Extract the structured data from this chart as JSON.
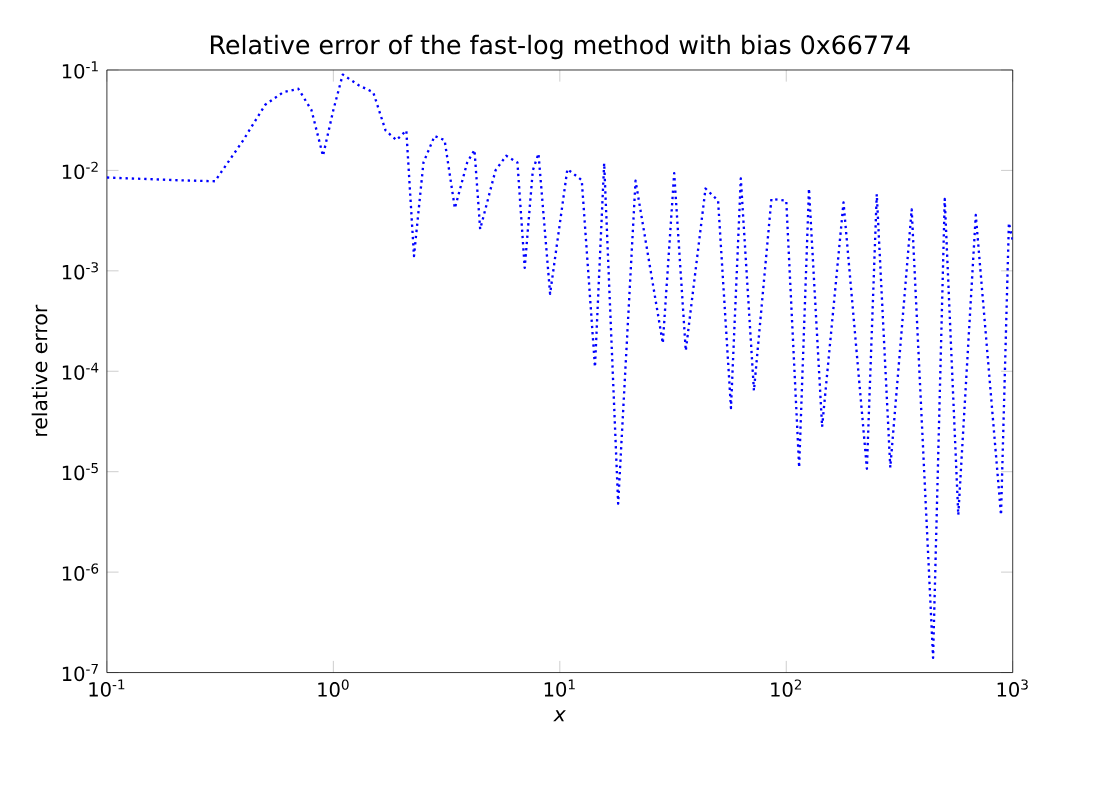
{
  "chart_data": {
    "type": "line",
    "title": "Relative error of the fast-log method with bias 0x66774",
    "xlabel": "*x*",
    "ylabel": "relative error",
    "log": "xy",
    "grid": false,
    "marker": "none",
    "line_style": "dotted",
    "xlim": [
      0.1,
      1000
    ],
    "ylim": [
      1e-07,
      0.1
    ],
    "xticks": [
      {
        "value": 0.1,
        "label": "10$^{-1}$"
      },
      {
        "value": 1,
        "label": "10$^{0}$"
      },
      {
        "value": 10,
        "label": "10$^{1}$"
      },
      {
        "value": 100,
        "label": "10$^{2}$"
      },
      {
        "value": 1000,
        "label": "10$^{3}$"
      }
    ],
    "yticks": [
      {
        "value": 1e-07,
        "label": "10$^{-7}$"
      },
      {
        "value": 1e-06,
        "label": "10$^{-6}$"
      },
      {
        "value": 1e-05,
        "label": "10$^{-5}$"
      },
      {
        "value": 0.0001,
        "label": "10$^{-4}$"
      },
      {
        "value": 0.001,
        "label": "10$^{-3}$"
      },
      {
        "value": 0.01,
        "label": "10$^{-2}$"
      },
      {
        "value": 0.1,
        "label": "10$^{-1}$"
      }
    ],
    "series": [
      {
        "color": "#0000ff",
        "x": [
          0.1,
          0.2,
          0.3,
          0.4,
          0.5,
          0.6,
          0.7,
          0.8,
          0.9,
          1.0,
          1.1,
          1.3,
          1.5,
          1.7,
          1.9,
          2.1,
          2.27,
          2.5,
          2.8,
          3.1,
          3.44,
          3.9,
          4.2,
          4.45,
          5.2,
          5.8,
          6.5,
          7.0,
          7.6,
          8.05,
          9.06,
          10.8,
          12.5,
          14.3,
          15.7,
          18.1,
          21.6,
          28.5,
          32,
          36,
          44,
          50,
          57,
          63,
          72,
          86,
          100,
          114,
          126,
          144,
          179,
          227,
          251,
          288,
          358,
          445,
          501,
          575,
          687,
          888,
          962,
          1000
        ],
        "values": [
          0.0085,
          0.008,
          0.0078,
          0.02,
          0.045,
          0.06,
          0.065,
          0.04,
          0.014,
          0.04,
          0.09,
          0.07,
          0.06,
          0.025,
          0.02,
          0.025,
          0.0014,
          0.012,
          0.022,
          0.02,
          0.0042,
          0.012,
          0.016,
          0.0026,
          0.01,
          0.014,
          0.012,
          0.00107,
          0.01,
          0.0147,
          0.00059,
          0.0103,
          0.008,
          0.00011,
          0.0118,
          4.8e-06,
          0.0079,
          0.00019,
          0.0094,
          0.00016,
          0.0066,
          0.005,
          4.3e-05,
          0.0083,
          6.4e-05,
          0.0052,
          0.005,
          1.1e-05,
          0.0066,
          2.8e-05,
          0.0048,
          1.07e-05,
          0.0058,
          1.1e-05,
          0.0041,
          1.4e-07,
          0.0052,
          3.7e-06,
          0.0036,
          3.7e-06,
          0.003,
          0.002
        ]
      }
    ]
  }
}
